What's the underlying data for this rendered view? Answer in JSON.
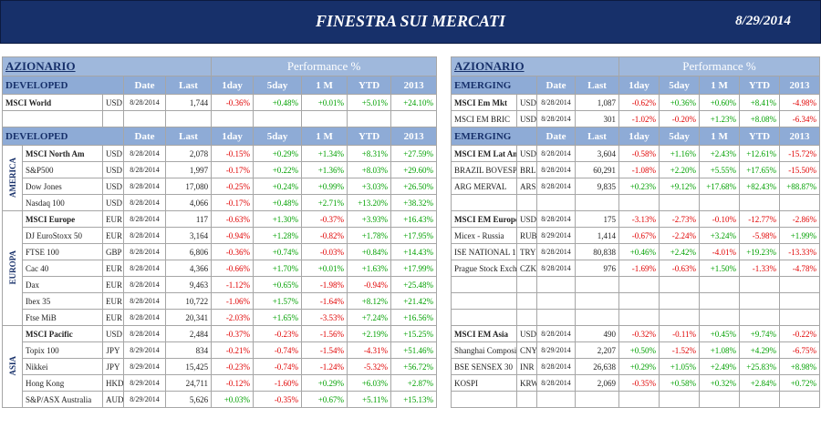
{
  "header": {
    "title": "FINESTRA SUI MERCATI",
    "date": "8/29/2014"
  },
  "tables": [
    {
      "title": "AZIONARIO",
      "performance_title": "Performance %",
      "sections": [
        {
          "columns": [
            "DEVELOPED",
            "Date",
            "Last",
            "1day",
            "5day",
            "1 M",
            "YTD",
            "2013"
          ],
          "groups": [
            {
              "rows": [
                [
                  "MSCI World",
                  "USD",
                  "8/28/2014",
                  "1,744",
                  "-0.36%",
                  "+0.48%",
                  "+0.01%",
                  "+5.01%",
                  "+24.10%"
                ],
                null
              ]
            }
          ]
        },
        {
          "columns": [
            "DEVELOPED",
            "Date",
            "Last",
            "1day",
            "5day",
            "1 M",
            "YTD",
            "2013"
          ],
          "groups": [
            {
              "label": "AMERICA",
              "rows": [
                [
                  "MSCI North Am",
                  "USD",
                  "8/28/2014",
                  "2,078",
                  "-0.15%",
                  "+0.29%",
                  "+1.34%",
                  "+8.31%",
                  "+27.59%"
                ],
                [
                  "S&P500",
                  "USD",
                  "8/28/2014",
                  "1,997",
                  "-0.17%",
                  "+0.22%",
                  "+1.36%",
                  "+8.03%",
                  "+29.60%"
                ],
                [
                  "Dow Jones",
                  "USD",
                  "8/28/2014",
                  "17,080",
                  "-0.25%",
                  "+0.24%",
                  "+0.99%",
                  "+3.03%",
                  "+26.50%"
                ],
                [
                  "Nasdaq 100",
                  "USD",
                  "8/28/2014",
                  "4,066",
                  "-0.17%",
                  "+0.48%",
                  "+2.71%",
                  "+13.20%",
                  "+38.32%"
                ]
              ]
            },
            {
              "label": "EUROPA",
              "rows": [
                [
                  "MSCI Europe",
                  "EUR",
                  "8/28/2014",
                  "117",
                  "-0.63%",
                  "+1.30%",
                  "-0.37%",
                  "+3.93%",
                  "+16.43%"
                ],
                [
                  "DJ EuroStoxx 50",
                  "EUR",
                  "8/28/2014",
                  "3,164",
                  "-0.94%",
                  "+1.28%",
                  "-0.82%",
                  "+1.78%",
                  "+17.95%"
                ],
                [
                  "FTSE 100",
                  "GBP",
                  "8/28/2014",
                  "6,806",
                  "-0.36%",
                  "+0.74%",
                  "-0.03%",
                  "+0.84%",
                  "+14.43%"
                ],
                [
                  "Cac 40",
                  "EUR",
                  "8/28/2014",
                  "4,366",
                  "-0.66%",
                  "+1.70%",
                  "+0.01%",
                  "+1.63%",
                  "+17.99%"
                ],
                [
                  "Dax",
                  "EUR",
                  "8/28/2014",
                  "9,463",
                  "-1.12%",
                  "+0.65%",
                  "-1.98%",
                  "-0.94%",
                  "+25.48%"
                ],
                [
                  "Ibex 35",
                  "EUR",
                  "8/28/2014",
                  "10,722",
                  "-1.06%",
                  "+1.57%",
                  "-1.64%",
                  "+8.12%",
                  "+21.42%"
                ],
                [
                  "Ftse MiB",
                  "EUR",
                  "8/28/2014",
                  "20,341",
                  "-2.03%",
                  "+1.65%",
                  "-3.53%",
                  "+7.24%",
                  "+16.56%"
                ]
              ]
            },
            {
              "label": "ASIA",
              "rows": [
                [
                  "MSCI Pacific",
                  "USD",
                  "8/28/2014",
                  "2,484",
                  "-0.37%",
                  "-0.23%",
                  "-1.56%",
                  "+2.19%",
                  "+15.25%"
                ],
                [
                  "Topix 100",
                  "JPY",
                  "8/29/2014",
                  "834",
                  "-0.21%",
                  "-0.74%",
                  "-1.54%",
                  "-4.31%",
                  "+51.46%"
                ],
                [
                  "Nikkei",
                  "JPY",
                  "8/29/2014",
                  "15,425",
                  "-0.23%",
                  "-0.74%",
                  "-1.24%",
                  "-5.32%",
                  "+56.72%"
                ],
                [
                  "Hong Kong",
                  "HKD",
                  "8/29/2014",
                  "24,711",
                  "-0.12%",
                  "-1.60%",
                  "+0.29%",
                  "+6.03%",
                  "+2.87%"
                ],
                [
                  "S&P/ASX Australia",
                  "AUD",
                  "8/29/2014",
                  "5,626",
                  "+0.03%",
                  "-0.35%",
                  "+0.67%",
                  "+5.11%",
                  "+15.13%"
                ]
              ]
            }
          ]
        }
      ]
    },
    {
      "title": "AZIONARIO",
      "performance_title": "Performance %",
      "sections": [
        {
          "columns": [
            "EMERGING",
            "Date",
            "Last",
            "1day",
            "5day",
            "1 M",
            "YTD",
            "2013"
          ],
          "groups": [
            {
              "rows": [
                [
                  "MSCI Em Mkt",
                  "USD",
                  "8/28/2014",
                  "1,087",
                  "-0.62%",
                  "+0.36%",
                  "+0.60%",
                  "+8.41%",
                  "-4.98%"
                ],
                [
                  "MSCI EM BRIC",
                  "USD",
                  "8/28/2014",
                  "301",
                  "-1.02%",
                  "-0.20%",
                  "+1.23%",
                  "+8.08%",
                  "-6.34%"
                ]
              ]
            }
          ]
        },
        {
          "columns": [
            "EMERGING",
            "Date",
            "Last",
            "1day",
            "5day",
            "1 M",
            "YTD",
            "2013"
          ],
          "groups": [
            {
              "rows": [
                [
                  "MSCI EM Lat Am",
                  "USD",
                  "8/28/2014",
                  "3,604",
                  "-0.58%",
                  "+1.16%",
                  "+2.43%",
                  "+12.61%",
                  "-15.72%"
                ],
                [
                  "BRAZIL BOVESP",
                  "BRL",
                  "8/28/2014",
                  "60,291",
                  "-1.08%",
                  "+2.20%",
                  "+5.55%",
                  "+17.65%",
                  "-15.50%"
                ],
                [
                  "ARG MERVAL",
                  "ARS",
                  "8/28/2014",
                  "9,835",
                  "+0.23%",
                  "+9.12%",
                  "+17.68%",
                  "+82.43%",
                  "+88.87%"
                ],
                null
              ]
            },
            {
              "rows": [
                [
                  "MSCI EM Europe",
                  "USD",
                  "8/28/2014",
                  "175",
                  "-3.13%",
                  "-2.73%",
                  "-0.10%",
                  "-12.77%",
                  "-2.86%"
                ],
                [
                  "Micex - Russia",
                  "RUB",
                  "8/29/2014",
                  "1,414",
                  "-0.67%",
                  "-2.24%",
                  "+3.24%",
                  "-5.98%",
                  "+1.99%"
                ],
                [
                  "ISE NATIONAL 1",
                  "TRY",
                  "8/28/2014",
                  "80,838",
                  "+0.46%",
                  "+2.42%",
                  "-4.01%",
                  "+19.23%",
                  "-13.33%"
                ],
                [
                  "Prague Stock Exch.",
                  "CZK",
                  "8/28/2014",
                  "976",
                  "-1.69%",
                  "-0.63%",
                  "+1.50%",
                  "-1.33%",
                  "-4.78%"
                ],
                null,
                null,
                null
              ]
            },
            {
              "rows": [
                [
                  "MSCI EM Asia",
                  "USD",
                  "8/28/2014",
                  "490",
                  "-0.32%",
                  "-0.11%",
                  "+0.45%",
                  "+9.74%",
                  "-0.22%"
                ],
                [
                  "Shanghai Composite",
                  "CNY",
                  "8/29/2014",
                  "2,207",
                  "+0.50%",
                  "-1.52%",
                  "+1.08%",
                  "+4.29%",
                  "-6.75%"
                ],
                [
                  "BSE SENSEX 30",
                  "INR",
                  "8/28/2014",
                  "26,638",
                  "+0.29%",
                  "+1.05%",
                  "+2.49%",
                  "+25.83%",
                  "+8.98%"
                ],
                [
                  "KOSPI",
                  "KRW",
                  "8/28/2014",
                  "2,069",
                  "-0.35%",
                  "+0.58%",
                  "+0.32%",
                  "+2.84%",
                  "+0.72%"
                ],
                null
              ]
            }
          ]
        }
      ]
    }
  ]
}
